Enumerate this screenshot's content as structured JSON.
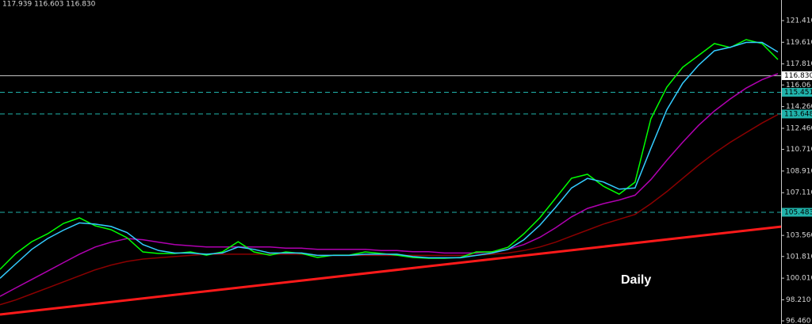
{
  "chart_data": {
    "type": "line",
    "header": "117.939 116.603 116.830",
    "annotation": "Daily",
    "ylim": [
      96.2,
      123.12
    ],
    "yticks": [
      {
        "value": 121.41,
        "label": "121.410"
      },
      {
        "value": 119.61,
        "label": "119.610"
      },
      {
        "value": 117.81,
        "label": "117.810"
      },
      116.06,
      {
        "value": 114.26,
        "label": "114.260"
      },
      {
        "value": 112.46,
        "label": "112.460"
      },
      {
        "value": 110.71,
        "label": "110.710"
      },
      {
        "value": 108.91,
        "label": "108.910"
      },
      {
        "value": 107.11,
        "label": "107.110"
      },
      {
        "value": 103.56,
        "label": "103.560"
      },
      {
        "value": 101.81,
        "label": "101.810"
      },
      {
        "value": 100.01,
        "label": "100.010"
      },
      {
        "value": 98.21,
        "label": "98.210"
      },
      {
        "value": 96.46,
        "label": "96.460"
      }
    ],
    "levels": [
      {
        "value": 116.83,
        "label": "116.830",
        "color": "#c8c8c8",
        "dashed": false,
        "box": "#ffffff"
      },
      {
        "value": 115.451,
        "color": "#20b2aa",
        "dashed": true,
        "box": "#20b2aa"
      },
      {
        "value": 113.648,
        "color": "#20b2aa",
        "dashed": true,
        "box": "#20b2aa"
      },
      {
        "value": 105.483,
        "color": "#20b2aa",
        "dashed": true,
        "box": "#20b2aa"
      }
    ],
    "trendline": {
      "color": "#ff1a1a",
      "values": [
        96.99,
        104.29
      ]
    },
    "series": [
      {
        "color": "#8b0000",
        "values": [
          97.8,
          98.2,
          98.7,
          99.2,
          99.7,
          100.2,
          100.7,
          101.1,
          101.4,
          101.6,
          101.7,
          101.8,
          101.9,
          102.0,
          102.0,
          102.0,
          102.0,
          102.0,
          102.0,
          102.0,
          101.9,
          101.9,
          101.9,
          101.9,
          101.9,
          101.9,
          101.9,
          101.9,
          101.9,
          101.9,
          101.9,
          102.0,
          102.1,
          102.3,
          102.6,
          103.0,
          103.5,
          104.0,
          104.5,
          104.9,
          105.3,
          106.2,
          107.2,
          108.3,
          109.4,
          110.4,
          111.3,
          112.1,
          112.9,
          113.6
        ]
      },
      {
        "color": "#b000b0",
        "values": [
          98.5,
          99.2,
          99.9,
          100.6,
          101.3,
          102.0,
          102.6,
          103.0,
          103.3,
          103.2,
          103.0,
          102.8,
          102.7,
          102.6,
          102.6,
          102.6,
          102.6,
          102.6,
          102.5,
          102.5,
          102.4,
          102.4,
          102.4,
          102.4,
          102.3,
          102.3,
          102.2,
          102.2,
          102.1,
          102.1,
          102.1,
          102.2,
          102.4,
          102.8,
          103.4,
          104.2,
          105.1,
          105.8,
          106.2,
          106.5,
          106.9,
          108.2,
          109.8,
          111.3,
          112.7,
          113.9,
          114.9,
          115.8,
          116.5,
          117.0
        ]
      },
      {
        "color": "#00ff00",
        "values": [
          100.74,
          102.06,
          103.04,
          103.7,
          104.56,
          105.02,
          104.36,
          104.03,
          103.37,
          102.19,
          102.06,
          102.06,
          102.19,
          101.92,
          102.19,
          103.04,
          102.19,
          101.92,
          102.19,
          102.06,
          101.73,
          101.92,
          101.92,
          102.19,
          102.06,
          101.92,
          101.73,
          101.66,
          101.66,
          101.73,
          102.19,
          102.19,
          102.58,
          103.7,
          105.02,
          106.66,
          108.31,
          108.64,
          107.65,
          106.99,
          107.98,
          113.25,
          115.88,
          117.53,
          118.51,
          119.5,
          119.17,
          119.83,
          119.5,
          118.18
        ]
      },
      {
        "color": "#33ccff",
        "values": [
          100.0,
          101.2,
          102.4,
          103.3,
          104.0,
          104.6,
          104.5,
          104.3,
          103.8,
          102.8,
          102.3,
          102.1,
          102.1,
          102.0,
          102.1,
          102.6,
          102.4,
          102.1,
          102.1,
          102.1,
          101.9,
          101.9,
          101.9,
          102.0,
          102.0,
          102.0,
          101.8,
          101.7,
          101.7,
          101.7,
          101.9,
          102.1,
          102.4,
          103.2,
          104.4,
          105.9,
          107.5,
          108.3,
          108.0,
          107.4,
          107.5,
          110.8,
          114.0,
          116.2,
          117.7,
          118.9,
          119.2,
          119.6,
          119.6,
          118.8
        ]
      }
    ]
  }
}
